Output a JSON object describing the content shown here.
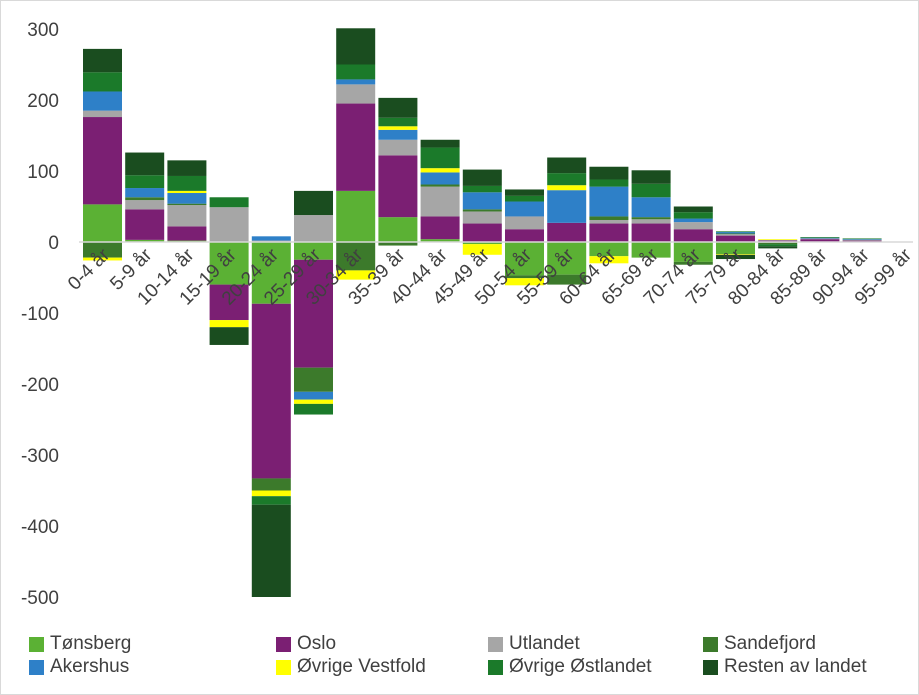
{
  "chart_data": {
    "type": "bar",
    "stacked": true,
    "ylim": [
      -500,
      300
    ],
    "yticks": [
      300,
      200,
      100,
      0,
      -100,
      -200,
      -300,
      -400,
      -500
    ],
    "grid": false,
    "legend_position": "bottom",
    "categories": [
      "0-4 år",
      "5-9 år",
      "10-14 år",
      "15-19 år",
      "20-24 år",
      "25-29 år",
      "30-34 år",
      "35-39 år",
      "40-44 år",
      "45-49 år",
      "50-54 år",
      "55-59 år",
      "60-64 år",
      "65-69 år",
      "70-74 år",
      "75-79 år",
      "80-84 år",
      "85-89 år",
      "90-94 år",
      "95-99 år"
    ],
    "series": [
      {
        "name": "Tønsberg",
        "color": "#5bb134",
        "values": [
          53,
          3,
          2,
          -60,
          -87,
          -25,
          72,
          35,
          4,
          -3,
          -47,
          -46,
          -20,
          -22,
          -28,
          -17,
          -1,
          0,
          0,
          0
        ]
      },
      {
        "name": "Oslo",
        "color": "#7b1f73",
        "values": [
          123,
          43,
          20,
          -50,
          -246,
          -152,
          123,
          87,
          32,
          26,
          18,
          27,
          26,
          26,
          18,
          9,
          2,
          4,
          2,
          0
        ]
      },
      {
        "name": "Utlandet",
        "color": "#a6a6a6",
        "values": [
          9,
          13,
          30,
          49,
          2,
          38,
          27,
          22,
          42,
          17,
          18,
          0,
          5,
          6,
          10,
          2,
          1,
          1,
          1,
          0
        ]
      },
      {
        "name": "Sandefjord",
        "color": "#3c7a2b",
        "values": [
          -22,
          4,
          2,
          0,
          -17,
          -34,
          -40,
          -5,
          3,
          3,
          -4,
          -14,
          5,
          3,
          -4,
          1,
          -2,
          0,
          0,
          0
        ]
      },
      {
        "name": "Akershus",
        "color": "#2e80c8",
        "values": [
          27,
          13,
          15,
          0,
          6,
          -11,
          7,
          14,
          17,
          24,
          21,
          46,
          42,
          28,
          5,
          2,
          0,
          1,
          1,
          0
        ]
      },
      {
        "name": "Øvrige Vestfold",
        "color": "#ffff00",
        "values": [
          -4,
          0,
          3,
          -10,
          -8,
          -6,
          -13,
          5,
          6,
          -15,
          -10,
          7,
          -10,
          0,
          0,
          -1,
          1,
          0,
          0,
          0
        ]
      },
      {
        "name": "Øvrige Østlandet",
        "color": "#1b7a2a",
        "values": [
          27,
          18,
          21,
          14,
          -12,
          -15,
          21,
          12,
          29,
          9,
          8,
          17,
          10,
          19,
          9,
          1,
          -3,
          1,
          1,
          0
        ]
      },
      {
        "name": "Resten av landet",
        "color": "#1a4d1f",
        "values": [
          33,
          32,
          22,
          -25,
          -130,
          34,
          51,
          28,
          11,
          23,
          9,
          22,
          18,
          19,
          8,
          -6,
          -3,
          0,
          0,
          0
        ]
      }
    ]
  }
}
